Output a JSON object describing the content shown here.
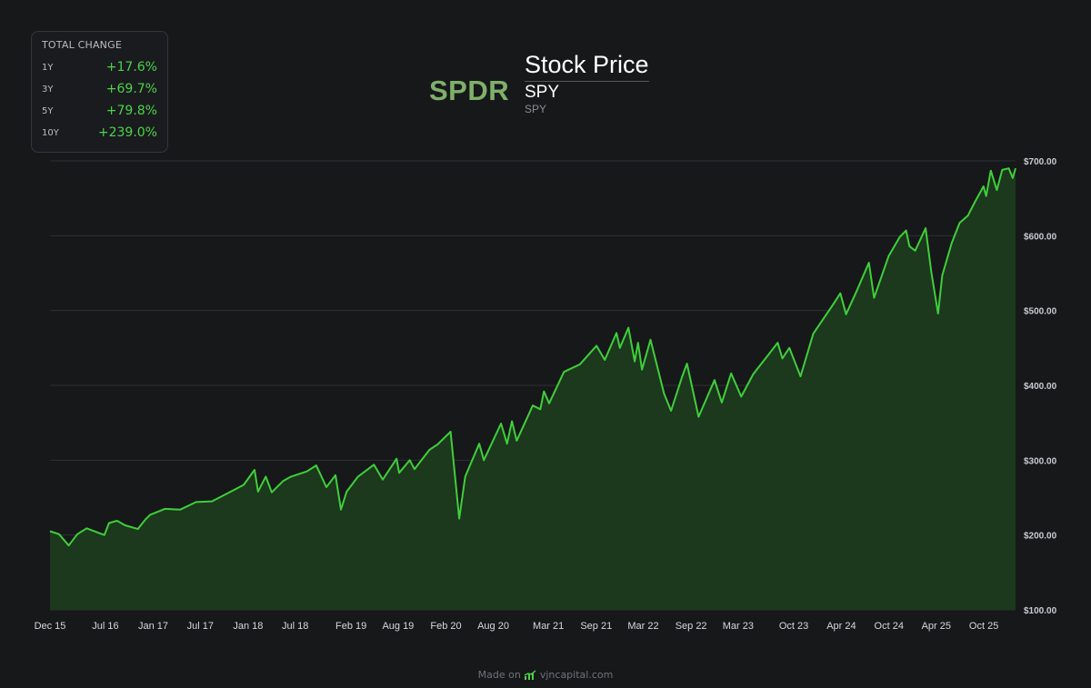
{
  "total_change": {
    "title": "TOTAL CHANGE",
    "rows": [
      {
        "label": "1Y",
        "value": "+17.6%"
      },
      {
        "label": "3Y",
        "value": "+69.7%"
      },
      {
        "label": "5Y",
        "value": "+79.8%"
      },
      {
        "label": "10Y",
        "value": "+239.0%"
      }
    ]
  },
  "header": {
    "logo_text": "SPDR",
    "title": "Stock Price",
    "ticker": "SPY",
    "ticker_sub": "SPY"
  },
  "footer": {
    "made_on": "Made on",
    "site": "vjncapital.com"
  },
  "colors": {
    "line": "#3fcf3a",
    "fill": "#1c3a1e",
    "grid": "#2e3034",
    "positive": "#4cd34a",
    "logo": "#7fb06a"
  },
  "chart_data": {
    "type": "area",
    "title": "Stock Price",
    "ylim": [
      100,
      700
    ],
    "xlim": [
      "2015-12-01",
      "2026-01-31"
    ],
    "y_ticks": [
      {
        "value": 100,
        "label": "$100.00"
      },
      {
        "value": 200,
        "label": "$200.00"
      },
      {
        "value": 300,
        "label": "$300.00"
      },
      {
        "value": 400,
        "label": "$400.00"
      },
      {
        "value": 500,
        "label": "$500.00"
      },
      {
        "value": 600,
        "label": "$600.00"
      },
      {
        "value": 700,
        "label": "$700.00"
      }
    ],
    "x_ticks": [
      {
        "date": "2015-12-01",
        "label": "Dec 15"
      },
      {
        "date": "2016-07-01",
        "label": "Jul 16"
      },
      {
        "date": "2017-01-01",
        "label": "Jan 17"
      },
      {
        "date": "2017-07-01",
        "label": "Jul 17"
      },
      {
        "date": "2018-01-01",
        "label": "Jan 18"
      },
      {
        "date": "2018-07-01",
        "label": "Jul 18"
      },
      {
        "date": "2019-02-01",
        "label": "Feb 19"
      },
      {
        "date": "2019-08-01",
        "label": "Aug 19"
      },
      {
        "date": "2020-02-01",
        "label": "Feb 20"
      },
      {
        "date": "2020-08-01",
        "label": "Aug 20"
      },
      {
        "date": "2021-03-01",
        "label": "Mar 21"
      },
      {
        "date": "2021-09-01",
        "label": "Sep 21"
      },
      {
        "date": "2022-03-01",
        "label": "Mar 22"
      },
      {
        "date": "2022-09-01",
        "label": "Sep 22"
      },
      {
        "date": "2023-03-01",
        "label": "Mar 23"
      },
      {
        "date": "2023-10-01",
        "label": "Oct 23"
      },
      {
        "date": "2024-04-01",
        "label": "Apr 24"
      },
      {
        "date": "2024-10-01",
        "label": "Oct 24"
      },
      {
        "date": "2025-04-01",
        "label": "Apr 25"
      },
      {
        "date": "2025-10-01",
        "label": "Oct 25"
      }
    ],
    "grid": true,
    "series": [
      {
        "points": [
          [
            "2015-12-01",
            205
          ],
          [
            "2016-01-05",
            201
          ],
          [
            "2016-02-11",
            186
          ],
          [
            "2016-03-15",
            201
          ],
          [
            "2016-04-20",
            209
          ],
          [
            "2016-06-27",
            200
          ],
          [
            "2016-07-15",
            216
          ],
          [
            "2016-08-15",
            219
          ],
          [
            "2016-09-15",
            213
          ],
          [
            "2016-11-03",
            208
          ],
          [
            "2016-11-30",
            220
          ],
          [
            "2016-12-20",
            227
          ],
          [
            "2017-02-15",
            235
          ],
          [
            "2017-04-15",
            234
          ],
          [
            "2017-06-15",
            244
          ],
          [
            "2017-08-15",
            245
          ],
          [
            "2017-10-15",
            256
          ],
          [
            "2017-12-15",
            267
          ],
          [
            "2018-01-26",
            287
          ],
          [
            "2018-02-08",
            258
          ],
          [
            "2018-03-10",
            278
          ],
          [
            "2018-04-02",
            257
          ],
          [
            "2018-05-15",
            272
          ],
          [
            "2018-06-15",
            278
          ],
          [
            "2018-08-15",
            285
          ],
          [
            "2018-09-20",
            293
          ],
          [
            "2018-10-29",
            264
          ],
          [
            "2018-12-03",
            280
          ],
          [
            "2018-12-24",
            234
          ],
          [
            "2019-01-15",
            258
          ],
          [
            "2019-02-28",
            278
          ],
          [
            "2019-04-30",
            294
          ],
          [
            "2019-06-03",
            274
          ],
          [
            "2019-07-26",
            302
          ],
          [
            "2019-08-05",
            283
          ],
          [
            "2019-09-15",
            300
          ],
          [
            "2019-10-03",
            288
          ],
          [
            "2019-11-30",
            314
          ],
          [
            "2019-12-31",
            321
          ],
          [
            "2020-02-19",
            338
          ],
          [
            "2020-03-23",
            222
          ],
          [
            "2020-04-15",
            278
          ],
          [
            "2020-06-08",
            322
          ],
          [
            "2020-06-26",
            300
          ],
          [
            "2020-08-31",
            349
          ],
          [
            "2020-09-23",
            322
          ],
          [
            "2020-10-12",
            352
          ],
          [
            "2020-10-30",
            326
          ],
          [
            "2020-12-31",
            373
          ],
          [
            "2021-01-29",
            368
          ],
          [
            "2021-02-12",
            392
          ],
          [
            "2021-03-04",
            376
          ],
          [
            "2021-04-30",
            418
          ],
          [
            "2021-06-30",
            428
          ],
          [
            "2021-09-02",
            453
          ],
          [
            "2021-10-04",
            434
          ],
          [
            "2021-11-18",
            470
          ],
          [
            "2021-12-01",
            450
          ],
          [
            "2022-01-03",
            477
          ],
          [
            "2022-01-27",
            432
          ],
          [
            "2022-02-09",
            457
          ],
          [
            "2022-02-24",
            421
          ],
          [
            "2022-03-29",
            461
          ],
          [
            "2022-05-20",
            389
          ],
          [
            "2022-06-16",
            366
          ],
          [
            "2022-07-29",
            412
          ],
          [
            "2022-08-16",
            429
          ],
          [
            "2022-09-30",
            358
          ],
          [
            "2022-11-30",
            407
          ],
          [
            "2022-12-28",
            377
          ],
          [
            "2023-02-02",
            416
          ],
          [
            "2023-03-13",
            385
          ],
          [
            "2023-04-28",
            415
          ],
          [
            "2023-06-30",
            443
          ],
          [
            "2023-07-31",
            457
          ],
          [
            "2023-08-18",
            436
          ],
          [
            "2023-09-14",
            450
          ],
          [
            "2023-10-27",
            412
          ],
          [
            "2023-12-15",
            469
          ],
          [
            "2024-02-29",
            508
          ],
          [
            "2024-03-28",
            523
          ],
          [
            "2024-04-19",
            495
          ],
          [
            "2024-05-31",
            527
          ],
          [
            "2024-07-16",
            564
          ],
          [
            "2024-08-05",
            517
          ],
          [
            "2024-09-30",
            573
          ],
          [
            "2024-11-11",
            598
          ],
          [
            "2024-12-06",
            607
          ],
          [
            "2024-12-19",
            586
          ],
          [
            "2025-01-10",
            580
          ],
          [
            "2025-02-19",
            610
          ],
          [
            "2025-03-13",
            551
          ],
          [
            "2025-04-08",
            496
          ],
          [
            "2025-04-24",
            547
          ],
          [
            "2025-05-30",
            590
          ],
          [
            "2025-06-30",
            617
          ],
          [
            "2025-08-01",
            627
          ],
          [
            "2025-08-29",
            646
          ],
          [
            "2025-09-30",
            666
          ],
          [
            "2025-10-10",
            653
          ],
          [
            "2025-10-28",
            687
          ],
          [
            "2025-11-20",
            661
          ],
          [
            "2025-12-11",
            688
          ],
          [
            "2026-01-05",
            690
          ],
          [
            "2026-01-20",
            677
          ],
          [
            "2026-01-31",
            690
          ]
        ]
      }
    ]
  }
}
